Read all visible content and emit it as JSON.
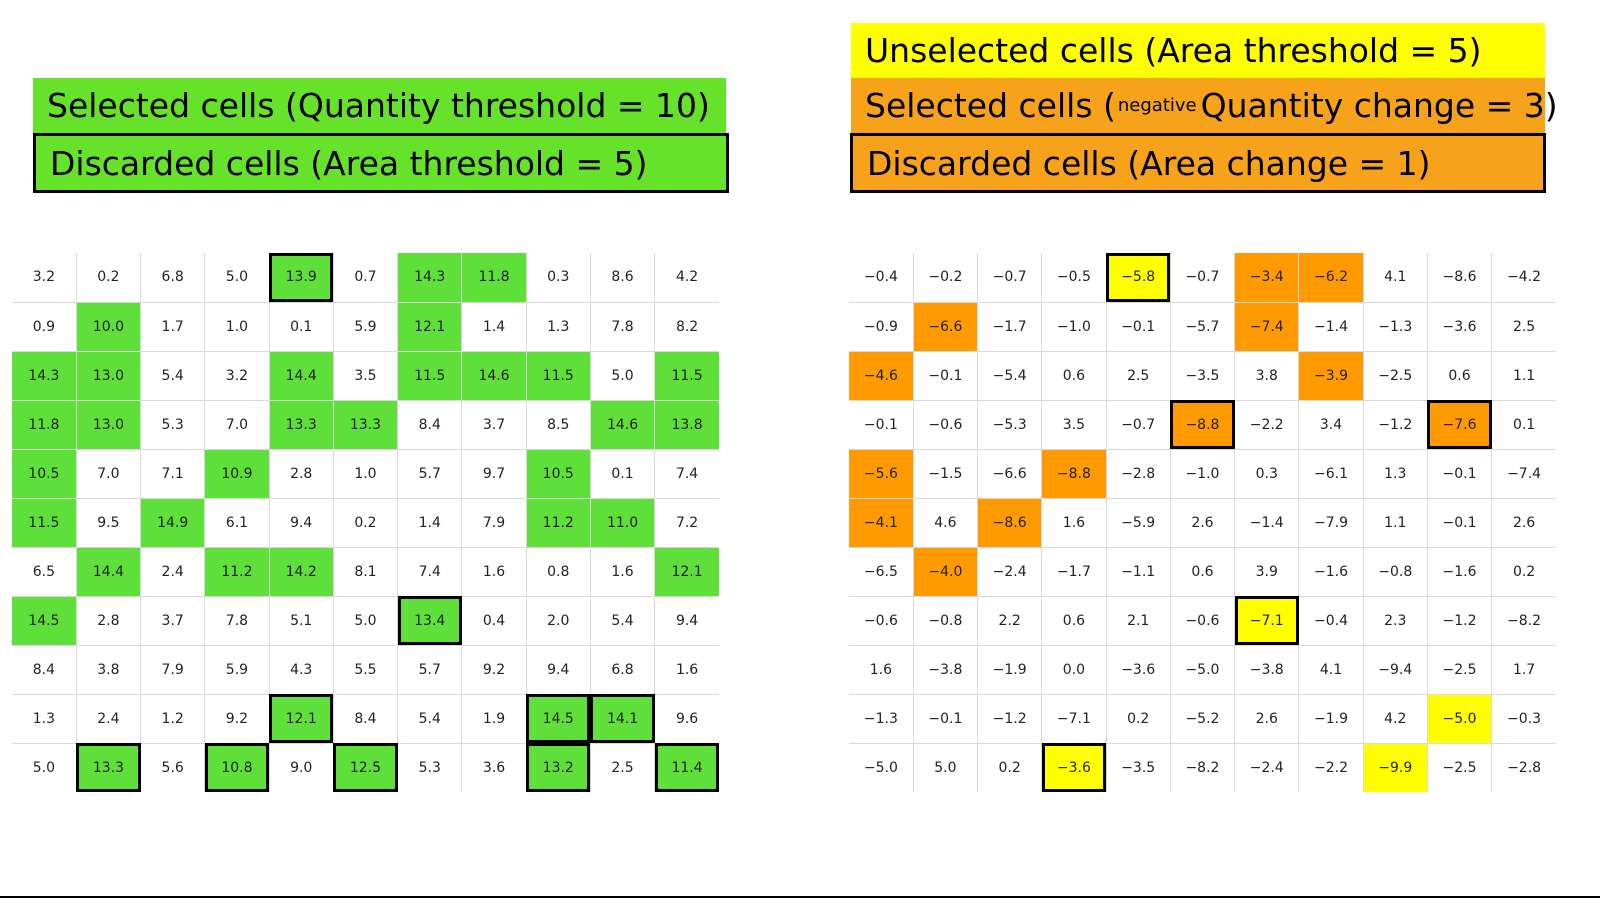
{
  "left_legend": {
    "selected_label": "Selected cells (Quantity threshold = 10)",
    "discarded_label": "Discarded cells (Area threshold = 5)"
  },
  "right_legend": {
    "unselected_label": "Unselected cells (Area threshold = 5)",
    "selected_prefix": "Selected cells (",
    "selected_sub": "negative",
    "selected_suffix": "Quantity change = 3)",
    "discarded_label": "Discarded cells (Area change = 1)"
  },
  "colors": {
    "green": "#5fdf3a",
    "green_legend": "#66e22a",
    "yellow": "#ffff00",
    "orange": "#ff9a00",
    "orange_legend": "#f7a21b",
    "text": "#222222"
  },
  "left_grid": {
    "rows": [
      [
        "3.2",
        "0.2",
        "6.8",
        "5.0",
        "13.9",
        "0.7",
        "14.3",
        "11.8",
        "0.3",
        "8.6",
        "4.2"
      ],
      [
        "0.9",
        "10.0",
        "1.7",
        "1.0",
        "0.1",
        "5.9",
        "12.1",
        "1.4",
        "1.3",
        "7.8",
        "8.2"
      ],
      [
        "14.3",
        "13.0",
        "5.4",
        "3.2",
        "14.4",
        "3.5",
        "11.5",
        "14.6",
        "11.5",
        "5.0",
        "11.5"
      ],
      [
        "11.8",
        "13.0",
        "5.3",
        "7.0",
        "13.3",
        "13.3",
        "8.4",
        "3.7",
        "8.5",
        "14.6",
        "13.8"
      ],
      [
        "10.5",
        "7.0",
        "7.1",
        "10.9",
        "2.8",
        "1.0",
        "5.7",
        "9.7",
        "10.5",
        "0.1",
        "7.4"
      ],
      [
        "11.5",
        "9.5",
        "14.9",
        "6.1",
        "9.4",
        "0.2",
        "1.4",
        "7.9",
        "11.2",
        "11.0",
        "7.2"
      ],
      [
        "6.5",
        "14.4",
        "2.4",
        "11.2",
        "14.2",
        "8.1",
        "7.4",
        "1.6",
        "0.8",
        "1.6",
        "12.1"
      ],
      [
        "14.5",
        "2.8",
        "3.7",
        "7.8",
        "5.1",
        "5.0",
        "13.4",
        "0.4",
        "2.0",
        "5.4",
        "9.4"
      ],
      [
        "8.4",
        "3.8",
        "7.9",
        "5.9",
        "4.3",
        "5.5",
        "5.7",
        "9.2",
        "9.4",
        "6.8",
        "1.6"
      ],
      [
        "1.3",
        "2.4",
        "1.2",
        "9.2",
        "12.1",
        "8.4",
        "5.4",
        "1.9",
        "14.5",
        "14.1",
        "9.6"
      ],
      [
        "5.0",
        "13.3",
        "5.6",
        "10.8",
        "9.0",
        "12.5",
        "5.3",
        "3.6",
        "13.2",
        "2.5",
        "11.4"
      ]
    ],
    "fill": [
      "....G.GG...",
      ".G....G....",
      "GG..G.GGG.G",
      "GG..GG...GG",
      "G..G....G..",
      "G.G.....GG.",
      ".G.GG.....G",
      "G.....G....",
      "...........",
      "....G...GG.",
      ".G.G.G..G.G"
    ],
    "outlined": [
      [
        0,
        4
      ],
      [
        7,
        6
      ],
      [
        9,
        4
      ],
      [
        9,
        8
      ],
      [
        9,
        9
      ],
      [
        10,
        1
      ],
      [
        10,
        3
      ],
      [
        10,
        5
      ],
      [
        10,
        8
      ],
      [
        10,
        10
      ]
    ]
  },
  "right_grid": {
    "rows": [
      [
        "−0.4",
        "−0.2",
        "−0.7",
        "−0.5",
        "−5.8",
        "−0.7",
        "−3.4",
        "−6.2",
        "4.1",
        "−8.6",
        "−4.2"
      ],
      [
        "−0.9",
        "−6.6",
        "−1.7",
        "−1.0",
        "−0.1",
        "−5.7",
        "−7.4",
        "−1.4",
        "−1.3",
        "−3.6",
        "2.5"
      ],
      [
        "−4.6",
        "−0.1",
        "−5.4",
        "0.6",
        "2.5",
        "−3.5",
        "3.8",
        "−3.9",
        "−2.5",
        "0.6",
        "1.1"
      ],
      [
        "−0.1",
        "−0.6",
        "−5.3",
        "3.5",
        "−0.7",
        "−8.8",
        "−2.2",
        "3.4",
        "−1.2",
        "−7.6",
        "0.1"
      ],
      [
        "−5.6",
        "−1.5",
        "−6.6",
        "−8.8",
        "−2.8",
        "−1.0",
        "0.3",
        "−6.1",
        "1.3",
        "−0.1",
        "−7.4"
      ],
      [
        "−4.1",
        "4.6",
        "−8.6",
        "1.6",
        "−5.9",
        "2.6",
        "−1.4",
        "−7.9",
        "1.1",
        "−0.1",
        "2.6"
      ],
      [
        "−6.5",
        "−4.0",
        "−2.4",
        "−1.7",
        "−1.1",
        "0.6",
        "3.9",
        "−1.6",
        "−0.8",
        "−1.6",
        "0.2"
      ],
      [
        "−0.6",
        "−0.8",
        "2.2",
        "0.6",
        "2.1",
        "−0.6",
        "−7.1",
        "−0.4",
        "2.3",
        "−1.2",
        "−8.2"
      ],
      [
        "1.6",
        "−3.8",
        "−1.9",
        "0.0",
        "−3.6",
        "−5.0",
        "−3.8",
        "4.1",
        "−9.4",
        "−2.5",
        "1.7"
      ],
      [
        "−1.3",
        "−0.1",
        "−1.2",
        "−7.1",
        "0.2",
        "−5.2",
        "2.6",
        "−1.9",
        "4.2",
        "−5.0",
        "−0.3"
      ],
      [
        "−5.0",
        "5.0",
        "0.2",
        "−3.6",
        "−3.5",
        "−8.2",
        "−2.4",
        "−2.2",
        "−9.9",
        "−2.5",
        "−2.8"
      ]
    ],
    "fill": [
      "....Y.OO...",
      ".O....O....",
      "O......O...",
      ".....O...O.",
      "O..O.......",
      "O.O........",
      ".O.........",
      "......Y....",
      "...........",
      ".........Y.",
      "...Y....Y.."
    ],
    "outlined": [
      [
        0,
        4
      ],
      [
        3,
        5
      ],
      [
        3,
        9
      ],
      [
        7,
        6
      ],
      [
        10,
        3
      ]
    ]
  }
}
